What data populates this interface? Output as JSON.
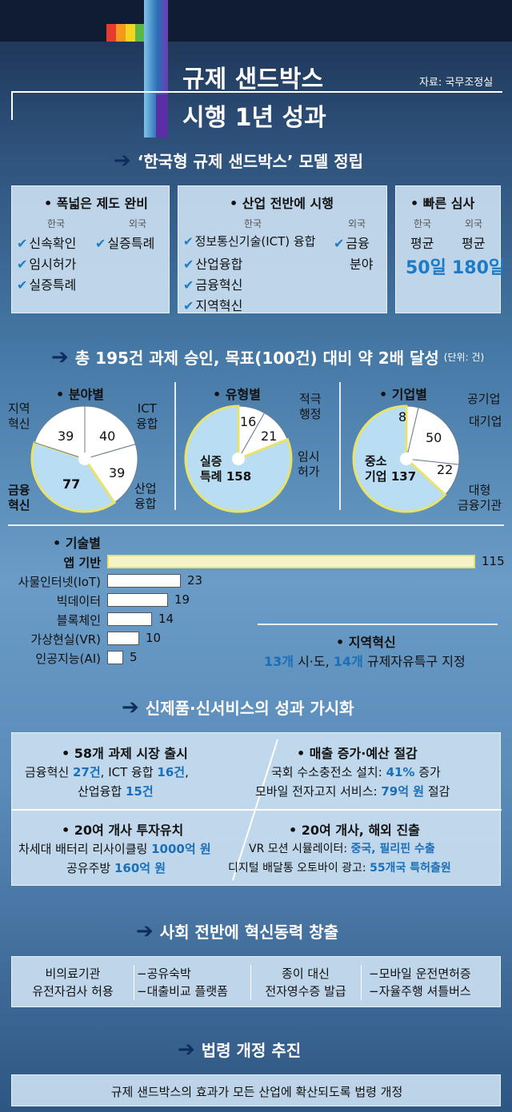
{
  "header": {
    "title_line1": "규제 샌드박스",
    "title_line2": "시행 1년 성과",
    "source": "자료: 국무조정실",
    "stripe_colors": [
      "#e63b2e",
      "#f39a1e",
      "#f5d421",
      "#5bb848",
      "#2a8fd0",
      "#6b3aa8"
    ]
  },
  "section1": {
    "heading": "‘한국형 규제 샌드박스’ 모델 정립",
    "box1": {
      "title": "폭넓은 제도 완비",
      "col1_label": "한국",
      "col1_items": [
        "신속확인",
        "임시허가",
        "실증특례"
      ],
      "col2_label": "외국",
      "col2_items": [
        "실증특례"
      ]
    },
    "box2": {
      "title": "산업 전반에 시행",
      "col1_label": "한국",
      "col1_items": [
        "정보통신기술(ICT) 융합",
        "산업융합",
        "금융혁신",
        "지역혁신"
      ],
      "col2_label": "외국",
      "col2_line1": "금융",
      "col2_line2": "분야"
    },
    "box3": {
      "title": "빠른 심사",
      "col1_label": "한국",
      "col1_sub": "평균",
      "col1_value": "50일",
      "col2_label": "외국",
      "col2_sub": "평균",
      "col2_value": "180일"
    }
  },
  "section2": {
    "heading": "총 195건 과제 승인, 목표(100건) 대비 약 2배 달성",
    "unit": "(단위: 건)",
    "pie1": {
      "title": "분야별",
      "labels": [
        "ICT 융합",
        "산업 융합",
        "금융 혁신",
        "지역 혁신"
      ],
      "label_lines": [
        [
          "ICT",
          "융합"
        ],
        [
          "산업",
          "융합"
        ],
        [
          "금융",
          "혁신"
        ],
        [
          "지역",
          "혁신"
        ]
      ],
      "values": [
        40,
        39,
        77,
        39
      ]
    },
    "pie2": {
      "title": "유형별",
      "labels": [
        "적극 행정",
        "임시 허가",
        "실증 특례"
      ],
      "label_lines": [
        [
          "적극",
          "행정"
        ],
        [
          "임시",
          "허가"
        ],
        [
          "실증",
          "특례"
        ]
      ],
      "values": [
        16,
        21,
        158
      ]
    },
    "pie3": {
      "title": "기업별",
      "labels": [
        "공기업",
        "대기업",
        "대형 금융기관",
        "중소 기업"
      ],
      "label_lines": [
        [
          "공기업"
        ],
        [
          "대기업"
        ],
        [
          "대형",
          "금융기관"
        ],
        [
          "중소",
          "기업"
        ]
      ],
      "values": [
        8,
        50,
        22,
        137
      ]
    },
    "tech": {
      "title": "기술별",
      "labels": [
        "앱 기반",
        "사물인터넷(IoT)",
        "빅데이터",
        "블록체인",
        "가상현실(VR)",
        "인공지능(AI)"
      ],
      "values": [
        115,
        23,
        19,
        14,
        10,
        5
      ]
    },
    "region": {
      "title": "지역혁신",
      "n1": "13개",
      "t1": " 시·도, ",
      "n2": "14개",
      "t2": " 규제자유특구 지정"
    }
  },
  "chart_data": [
    {
      "type": "pie",
      "title": "분야별",
      "labels": [
        "ICT 융합",
        "산업 융합",
        "금융 혁신",
        "지역 혁신"
      ],
      "values": [
        40,
        39,
        77,
        39
      ]
    },
    {
      "type": "pie",
      "title": "유형별",
      "labels": [
        "적극 행정",
        "임시 허가",
        "실증 특례"
      ],
      "values": [
        16,
        21,
        158
      ]
    },
    {
      "type": "pie",
      "title": "기업별",
      "labels": [
        "공기업",
        "대기업",
        "대형 금융기관",
        "중소 기업"
      ],
      "values": [
        8,
        50,
        22,
        137
      ]
    },
    {
      "type": "bar",
      "title": "기술별",
      "categories": [
        "앱 기반",
        "사물인터넷(IoT)",
        "빅데이터",
        "블록체인",
        "가상현실(VR)",
        "인공지능(AI)"
      ],
      "values": [
        115,
        23,
        19,
        14,
        10,
        5
      ]
    }
  ],
  "section3": {
    "heading": "신제품·신서비스의 성과 가시화",
    "q1": {
      "title": "58개 과제 시장 출시",
      "l1a": "금융혁신 ",
      "l1b": "27건",
      "l1c": ", ICT 융합 ",
      "l1d": "16건",
      "l1e": ",",
      "l2a": "산업융합 ",
      "l2b": "15건"
    },
    "q2": {
      "title": "매출 증가·예산 절감",
      "l1a": "국회 수소충전소 설치: ",
      "l1b": "41%",
      "l1c": " 증가",
      "l2a": "모바일 전자고지 서비스: ",
      "l2b": "79억 원",
      "l2c": " 절감"
    },
    "q3": {
      "title": "20여 개사 투자유치",
      "l1a": "차세대 배터리 리사이클링 ",
      "l1b": "1000억 원",
      "l2a": "공유주방 ",
      "l2b": "160억 원"
    },
    "q4": {
      "title": "20여 개사, 해외 진출",
      "l1a": "VR 모션 시뮬레이터: ",
      "l1b": "중국, 필리핀 수출",
      "l2a": "디지털 배달통 오토바이 광고: ",
      "l2b": "55개국 특허출원"
    }
  },
  "section4": {
    "heading": "사회 전반에 혁신동력 창출",
    "cells": [
      [
        "비의료기관",
        "유전자검사 허용"
      ],
      [
        "−공유숙박",
        "−대출비교 플랫폼"
      ],
      [
        "종이 대신",
        "전자영수증 발급"
      ],
      [
        "−모바일 운전면허증",
        "−자율주행 셔틀버스"
      ]
    ]
  },
  "section5": {
    "heading": "법령 개정 추진",
    "text": "규제 샌드박스의 효과가 모든 산업에 확산되도록 법령 개정"
  }
}
